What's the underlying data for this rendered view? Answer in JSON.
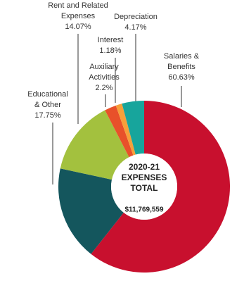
{
  "chart_data": {
    "type": "donut",
    "center_title": [
      "2020-21",
      "EXPENSES",
      "TOTAL"
    ],
    "center_total": "$11,769,559",
    "categories": [
      "Salaries & Benefits",
      "Educational & Other",
      "Rent and Related Expenses",
      "Auxiliary Activities",
      "Interest",
      "Depreciation"
    ],
    "values": [
      60.63,
      17.75,
      14.07,
      2.2,
      1.18,
      4.17
    ],
    "value_labels": [
      "60.63%",
      "17.75%",
      "14.07%",
      "2.2%",
      "1.18%",
      "4.17%"
    ],
    "colors": [
      "#c8102e",
      "#14565d",
      "#a3c13e",
      "#e8512a",
      "#f6a03a",
      "#17a59c"
    ]
  }
}
